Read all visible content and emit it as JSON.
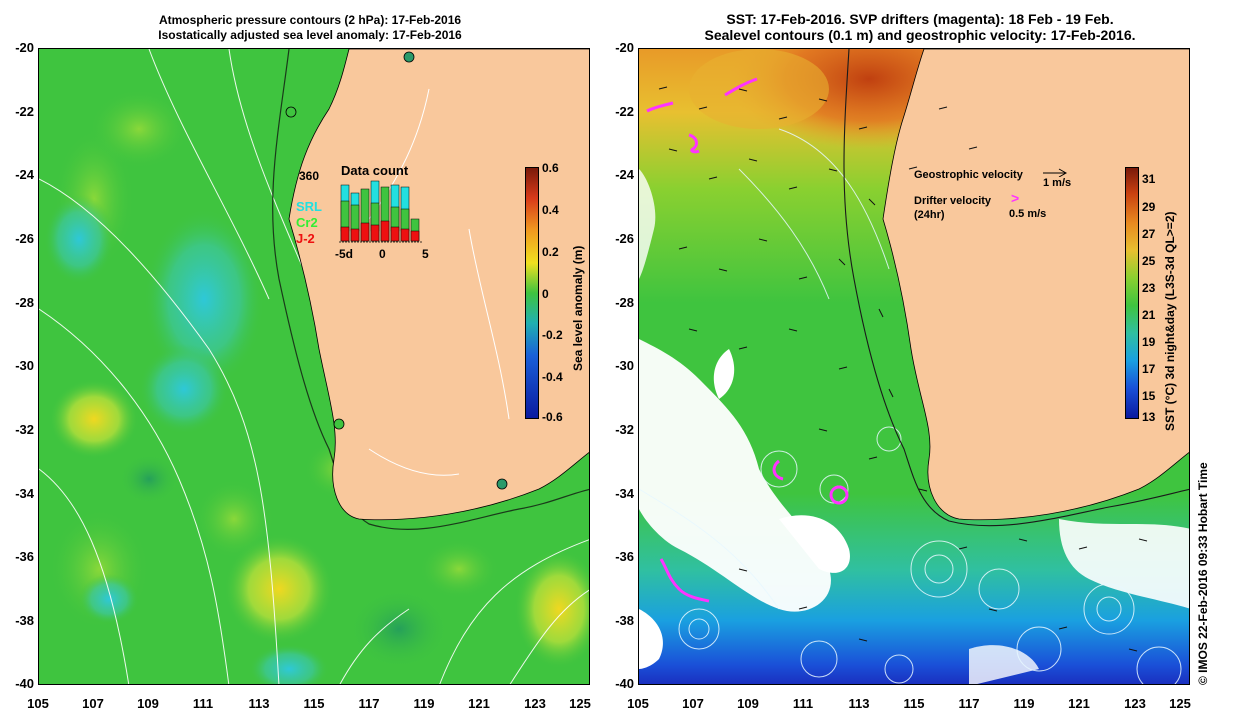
{
  "left_panel": {
    "title_line1": "Atmospheric pressure contours (2 hPa): 17-Feb-2016",
    "title_line2": "Isostatically adjusted sea level anomaly: 17-Feb-2016",
    "y_ticks": [
      "-20",
      "-22",
      "-24",
      "-26",
      "-28",
      "-30",
      "-32",
      "-34",
      "-36",
      "-38",
      "-40"
    ],
    "x_ticks": [
      "105",
      "107",
      "109",
      "111",
      "113",
      "115",
      "117",
      "119",
      "121",
      "123",
      "125"
    ],
    "colorbar_label": "Sea level anomaly (m)",
    "colorbar_ticks": [
      "0.6",
      "0.4",
      "0.2",
      "0",
      "-0.2",
      "-0.4",
      "-0.6"
    ],
    "inset": {
      "title": "Data count",
      "count_label": "360",
      "legend": [
        "SRL",
        "Cr2",
        "J-2"
      ],
      "x_ticks": [
        "-5d",
        "0",
        "5"
      ]
    }
  },
  "right_panel": {
    "title_line1": "SST: 17-Feb-2016. SVP drifters (magenta): 18 Feb - 19 Feb.",
    "title_line2": "Sealevel contours (0.1 m) and geostrophic velocity: 17-Feb-2016.",
    "y_ticks": [
      "-20",
      "-22",
      "-24",
      "-26",
      "-28",
      "-30",
      "-32",
      "-34",
      "-36",
      "-38",
      "-40"
    ],
    "x_ticks": [
      "105",
      "107",
      "109",
      "111",
      "113",
      "115",
      "117",
      "119",
      "121",
      "123",
      "125"
    ],
    "colorbar_label": "SST (°C) 3d night&day (L3S-3d QL>=2)",
    "colorbar_ticks": [
      "31",
      "29",
      "27",
      "25",
      "23",
      "21",
      "19",
      "17",
      "15",
      "13"
    ],
    "legend": {
      "geo_label": "Geostrophic velocity",
      "geo_scale": "1 m/s",
      "drifter_label": "Drifter velocity",
      "drifter_sub": "(24hr)",
      "drifter_scale": "0.5 m/s"
    }
  },
  "credit": "© IMOS 22-Feb-2016 09:33 Hobart Time",
  "colors": {
    "land": "#f9c89c",
    "sla_green": "#3fc43f",
    "magenta": "#ff33ff"
  }
}
